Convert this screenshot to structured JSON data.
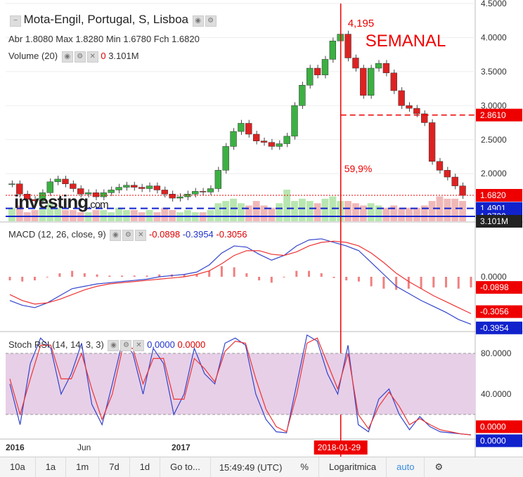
{
  "header": {
    "title": "Mota-Engil, Portugal, S, Lisboa",
    "ohlc": {
      "abr_label": "Abr",
      "abr": "1.8080",
      "max_label": "Max",
      "max": "1.8280",
      "min_label": "Min",
      "min": "1.6780",
      "fch_label": "Fch",
      "fch": "1.6820"
    },
    "volume_label": "Volume (20)",
    "volume_zero": "0",
    "volume_value": "3.101M"
  },
  "annotations": {
    "peak": "4,195",
    "weekly": "SEMANAL",
    "pct": "59,9%"
  },
  "logo": {
    "main": "investing",
    "suffix": ".com"
  },
  "macd": {
    "label": "MACD (12, 26, close, 9)",
    "v1": "-0.0898",
    "v2": "-0.3954",
    "v3": "-0.3056"
  },
  "stoch": {
    "label": "Stoch RSI (14, 14, 3, 3)",
    "k": "0.0000",
    "d": "0.0000"
  },
  "bottombar": {
    "buttons": [
      "10a",
      "1a",
      "1m",
      "7d",
      "1d",
      "Go to..."
    ],
    "time": "15:49:49 (UTC)",
    "pct": "%",
    "log": "Logaritmica",
    "auto": "auto",
    "gear": "⚙"
  },
  "chart_data": [
    {
      "type": "candlestick",
      "title": "Mota-Engil, Portugal, S, Lisboa",
      "x_ticks": [
        "2016",
        "Jun",
        "2017",
        "2018-01-29"
      ],
      "y_ticks": [
        "4.5000",
        "4.0000",
        "3.5000",
        "3.0000",
        "2.5000",
        "2.0000"
      ],
      "ylim": [
        1.3,
        4.5
      ],
      "price_labels": [
        "2.8610",
        "1.6820",
        "1.4901",
        "1.3722",
        "3.101M"
      ],
      "close": [
        1.85,
        1.7,
        1.62,
        1.6,
        1.72,
        1.88,
        1.92,
        1.85,
        1.78,
        1.7,
        1.72,
        1.66,
        1.72,
        1.76,
        1.8,
        1.83,
        1.8,
        1.78,
        1.82,
        1.76,
        1.7,
        1.64,
        1.66,
        1.7,
        1.74,
        1.73,
        1.78,
        2.05,
        2.4,
        2.62,
        2.74,
        2.58,
        2.48,
        2.46,
        2.4,
        2.44,
        2.55,
        3.0,
        3.3,
        3.55,
        3.45,
        3.68,
        3.95,
        4.05,
        3.7,
        3.55,
        3.15,
        3.55,
        3.62,
        3.48,
        3.22,
        3.0,
        2.96,
        2.88,
        2.75,
        2.18,
        2.05,
        1.95,
        1.82,
        1.68
      ],
      "volume": [
        0.6,
        0.7,
        0.4,
        0.5,
        0.6,
        0.8,
        0.6,
        0.5,
        0.5,
        0.4,
        0.4,
        0.5,
        0.5,
        0.4,
        0.6,
        0.5,
        0.5,
        0.4,
        0.5,
        0.4,
        0.6,
        0.5,
        0.4,
        0.5,
        0.4,
        0.4,
        0.5,
        0.8,
        0.9,
        1.0,
        0.8,
        0.7,
        0.9,
        0.7,
        0.6,
        0.8,
        1.4,
        0.9,
        1.0,
        0.9,
        0.8,
        1.0,
        1.1,
        0.9,
        0.9,
        0.8,
        0.7,
        0.8,
        0.7,
        0.6,
        0.7,
        0.6,
        0.6,
        0.6,
        0.7,
        0.9,
        1.1,
        1.0,
        1.0,
        0.9
      ]
    },
    {
      "type": "line",
      "title": "MACD (12, 26, close, 9)",
      "y_ticks": [
        "0.0000"
      ],
      "price_labels": [
        "-0.0898",
        "-0.3056",
        "-0.3954"
      ],
      "ylim": [
        -0.45,
        0.45
      ],
      "series": [
        {
          "name": "MACD",
          "values": [
            -0.2,
            -0.24,
            -0.26,
            -0.22,
            -0.16,
            -0.1,
            -0.08,
            -0.06,
            -0.05,
            -0.04,
            -0.03,
            -0.02,
            0.0,
            0.01,
            0.02,
            0.04,
            0.1,
            0.2,
            0.26,
            0.25,
            0.19,
            0.14,
            0.18,
            0.26,
            0.31,
            0.32,
            0.29,
            0.26,
            0.22,
            0.12,
            0.02,
            -0.08,
            -0.14,
            -0.2,
            -0.25,
            -0.3,
            -0.36,
            -0.4
          ]
        },
        {
          "name": "Signal",
          "values": [
            -0.15,
            -0.2,
            -0.23,
            -0.22,
            -0.19,
            -0.15,
            -0.11,
            -0.08,
            -0.06,
            -0.05,
            -0.04,
            -0.03,
            -0.02,
            -0.01,
            0.0,
            0.02,
            0.05,
            0.11,
            0.18,
            0.22,
            0.22,
            0.19,
            0.18,
            0.21,
            0.26,
            0.29,
            0.3,
            0.29,
            0.26,
            0.2,
            0.12,
            0.03,
            -0.04,
            -0.1,
            -0.16,
            -0.21,
            -0.26,
            -0.31
          ]
        }
      ],
      "histogram": [
        -0.03,
        -0.04,
        -0.03,
        0.0,
        0.03,
        0.05,
        0.03,
        0.02,
        0.01,
        0.01,
        0.01,
        0.01,
        0.02,
        0.02,
        0.02,
        0.02,
        0.05,
        0.09,
        0.08,
        0.03,
        -0.03,
        -0.05,
        0.0,
        0.05,
        0.05,
        0.03,
        -0.01,
        -0.03,
        -0.04,
        -0.08,
        -0.1,
        -0.11,
        -0.1,
        -0.1,
        -0.09,
        -0.09,
        -0.1,
        -0.09
      ]
    },
    {
      "type": "line",
      "title": "Stoch RSI (14, 14, 3, 3)",
      "y_ticks": [
        "80.0000",
        "40.0000"
      ],
      "price_labels": [
        "0.0000",
        "0.0000"
      ],
      "ylim": [
        0,
        100
      ],
      "band": [
        20,
        80
      ],
      "series": [
        {
          "name": "%K",
          "values": [
            50,
            10,
            70,
            95,
            85,
            40,
            60,
            90,
            30,
            10,
            50,
            92,
            80,
            40,
            85,
            70,
            20,
            40,
            85,
            60,
            50,
            90,
            95,
            88,
            40,
            15,
            3,
            2,
            50,
            98,
            92,
            60,
            40,
            88,
            10,
            3,
            35,
            45,
            20,
            5,
            18,
            8,
            3,
            2,
            1,
            0
          ]
        },
        {
          "name": "%D",
          "values": [
            55,
            20,
            55,
            88,
            88,
            55,
            55,
            80,
            45,
            15,
            40,
            85,
            85,
            50,
            75,
            75,
            35,
            35,
            75,
            65,
            52,
            82,
            92,
            90,
            55,
            25,
            8,
            3,
            40,
            90,
            95,
            70,
            45,
            80,
            20,
            6,
            28,
            42,
            28,
            10,
            16,
            10,
            5,
            3,
            1,
            0
          ]
        }
      ]
    }
  ]
}
